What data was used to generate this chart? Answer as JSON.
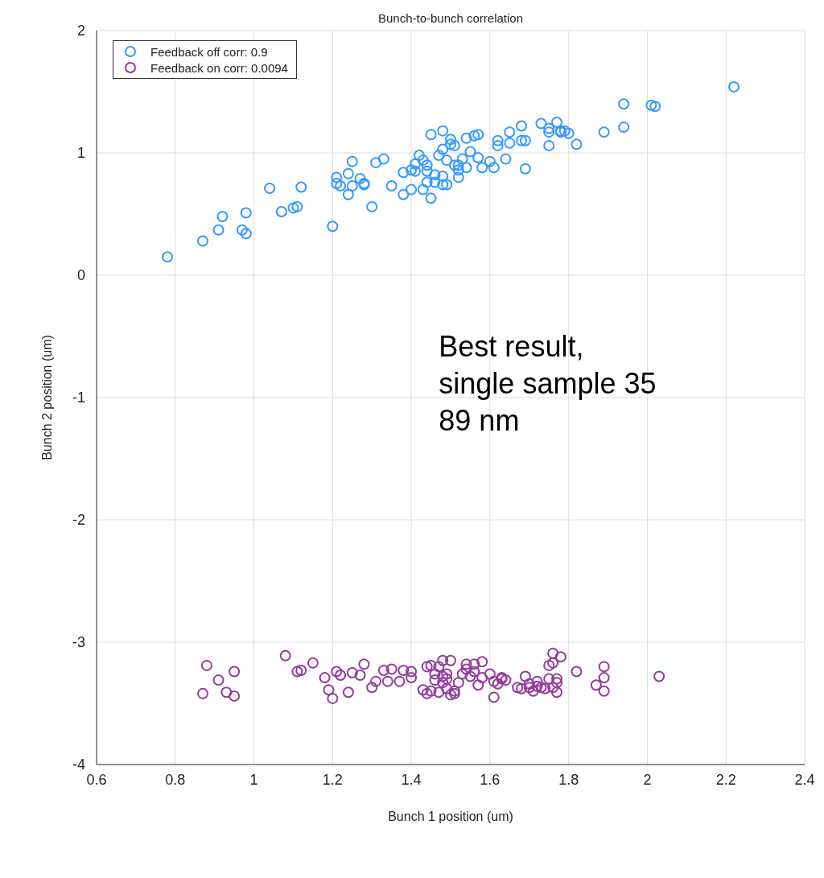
{
  "chart_data": {
    "type": "scatter",
    "title": "Bunch-to-bunch correlation",
    "xlabel": "Bunch 1 position (um)",
    "ylabel": "Bunch 2 position (um)",
    "xlim": [
      0.6,
      2.4
    ],
    "xticks": [
      0.6,
      0.8,
      1,
      1.2,
      1.4,
      1.6,
      1.8,
      2,
      2.2,
      2.4
    ],
    "ylim": [
      -4,
      2
    ],
    "yticks": [
      -4,
      -3,
      -2,
      -1,
      0,
      1,
      2
    ],
    "grid": true,
    "legend": "top left",
    "marker": "circle",
    "annotations": [
      "Best result,",
      "single sample 35",
      "89 nm"
    ],
    "series": [
      {
        "name": "Feedback off corr: 0.9",
        "color": "#3399ff",
        "x": [
          0.78,
          0.87,
          0.91,
          0.92,
          0.97,
          0.98,
          0.98,
          1.04,
          1.07,
          1.1,
          1.11,
          1.12,
          1.2,
          1.21,
          1.21,
          1.22,
          1.24,
          1.24,
          1.25,
          1.25,
          1.27,
          1.28,
          1.28,
          1.3,
          1.31,
          1.33,
          1.35,
          1.38,
          1.38,
          1.4,
          1.4,
          1.41,
          1.41,
          1.42,
          1.43,
          1.43,
          1.44,
          1.44,
          1.44,
          1.45,
          1.45,
          1.46,
          1.46,
          1.47,
          1.48,
          1.48,
          1.48,
          1.48,
          1.49,
          1.49,
          1.5,
          1.5,
          1.51,
          1.51,
          1.52,
          1.52,
          1.52,
          1.53,
          1.54,
          1.54,
          1.55,
          1.56,
          1.57,
          1.57,
          1.58,
          1.6,
          1.61,
          1.62,
          1.62,
          1.64,
          1.65,
          1.65,
          1.68,
          1.68,
          1.69,
          1.69,
          1.73,
          1.75,
          1.75,
          1.75,
          1.77,
          1.78,
          1.78,
          1.79,
          1.8,
          1.82,
          1.89,
          1.94,
          1.94,
          2.01,
          2.02,
          2.22
        ],
        "values": [
          0.15,
          0.28,
          0.37,
          0.48,
          0.37,
          0.34,
          0.51,
          0.71,
          0.52,
          0.55,
          0.56,
          0.72,
          0.4,
          0.8,
          0.75,
          0.73,
          0.66,
          0.83,
          0.93,
          0.73,
          0.79,
          0.74,
          0.75,
          0.56,
          0.92,
          0.95,
          0.73,
          0.66,
          0.84,
          0.86,
          0.7,
          0.91,
          0.85,
          0.98,
          0.94,
          0.7,
          0.9,
          0.76,
          0.85,
          0.63,
          1.15,
          0.76,
          0.82,
          0.98,
          1.03,
          1.18,
          0.74,
          0.81,
          0.94,
          0.74,
          1.07,
          1.11,
          0.9,
          1.06,
          0.86,
          0.9,
          0.8,
          0.95,
          1.12,
          0.88,
          1.01,
          1.14,
          0.96,
          1.15,
          0.88,
          0.93,
          0.88,
          1.06,
          1.1,
          0.95,
          1.08,
          1.17,
          1.22,
          1.1,
          0.87,
          1.1,
          1.24,
          1.2,
          1.17,
          1.06,
          1.25,
          1.17,
          1.18,
          1.18,
          1.16,
          1.07,
          1.17,
          1.4,
          1.21,
          1.39,
          1.38,
          1.54
        ]
      },
      {
        "name": "Feedback on corr: 0.0094",
        "color": "#943a9e",
        "x": [
          0.87,
          0.88,
          0.91,
          0.93,
          0.95,
          0.95,
          1.08,
          1.11,
          1.12,
          1.15,
          1.18,
          1.19,
          1.2,
          1.21,
          1.22,
          1.24,
          1.25,
          1.27,
          1.28,
          1.3,
          1.31,
          1.33,
          1.34,
          1.35,
          1.37,
          1.38,
          1.4,
          1.4,
          1.43,
          1.44,
          1.44,
          1.45,
          1.45,
          1.46,
          1.46,
          1.47,
          1.47,
          1.48,
          1.48,
          1.48,
          1.49,
          1.49,
          1.49,
          1.5,
          1.5,
          1.51,
          1.51,
          1.52,
          1.53,
          1.54,
          1.54,
          1.55,
          1.56,
          1.56,
          1.57,
          1.58,
          1.58,
          1.6,
          1.61,
          1.61,
          1.62,
          1.63,
          1.63,
          1.64,
          1.67,
          1.68,
          1.69,
          1.7,
          1.7,
          1.71,
          1.72,
          1.72,
          1.73,
          1.74,
          1.75,
          1.75,
          1.76,
          1.76,
          1.76,
          1.77,
          1.77,
          1.77,
          1.78,
          1.82,
          1.87,
          1.89,
          1.89,
          1.89,
          2.03
        ],
        "values": [
          -3.42,
          -3.19,
          -3.31,
          -3.41,
          -3.44,
          -3.24,
          -3.11,
          -3.24,
          -3.23,
          -3.17,
          -3.29,
          -3.39,
          -3.46,
          -3.24,
          -3.27,
          -3.41,
          -3.25,
          -3.27,
          -3.18,
          -3.37,
          -3.32,
          -3.23,
          -3.32,
          -3.22,
          -3.32,
          -3.23,
          -3.24,
          -3.29,
          -3.39,
          -3.2,
          -3.42,
          -3.19,
          -3.4,
          -3.26,
          -3.31,
          -3.2,
          -3.41,
          -3.15,
          -3.28,
          -3.33,
          -3.26,
          -3.3,
          -3.38,
          -3.15,
          -3.43,
          -3.4,
          -3.42,
          -3.33,
          -3.26,
          -3.18,
          -3.22,
          -3.28,
          -3.18,
          -3.24,
          -3.35,
          -3.16,
          -3.29,
          -3.26,
          -3.32,
          -3.45,
          -3.34,
          -3.29,
          -3.3,
          -3.31,
          -3.37,
          -3.38,
          -3.28,
          -3.34,
          -3.37,
          -3.4,
          -3.32,
          -3.36,
          -3.37,
          -3.38,
          -3.19,
          -3.3,
          -3.09,
          -3.17,
          -3.37,
          -3.33,
          -3.41,
          -3.3,
          -3.12,
          -3.24,
          -3.35,
          -3.2,
          -3.29,
          -3.4,
          -3.28
        ]
      }
    ]
  }
}
